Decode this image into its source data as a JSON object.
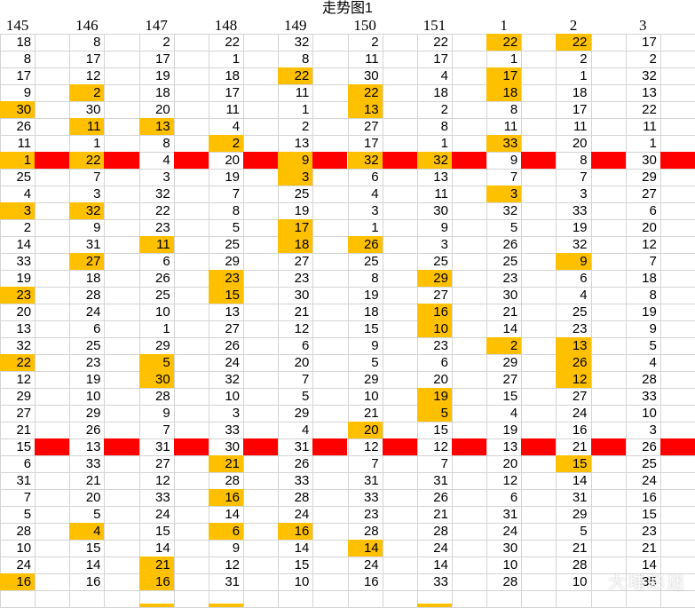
{
  "title": "走势图1",
  "columns": [
    "145",
    "146",
    "147",
    "148",
    "149",
    "150",
    "151",
    "1",
    "2",
    "3"
  ],
  "rows": [
    [
      "18",
      "8",
      "2",
      "22",
      "32",
      "2",
      "22",
      "22",
      "22",
      "17"
    ],
    [
      "8",
      "17",
      "17",
      "1",
      "8",
      "11",
      "17",
      "1",
      "2",
      "2"
    ],
    [
      "17",
      "12",
      "19",
      "18",
      "22",
      "30",
      "4",
      "17",
      "1",
      "32"
    ],
    [
      "9",
      "2",
      "18",
      "17",
      "11",
      "22",
      "18",
      "18",
      "18",
      "13"
    ],
    [
      "30",
      "30",
      "20",
      "11",
      "1",
      "13",
      "2",
      "8",
      "17",
      "22"
    ],
    [
      "26",
      "11",
      "13",
      "4",
      "2",
      "27",
      "8",
      "11",
      "11",
      "11"
    ],
    [
      "11",
      "1",
      "8",
      "2",
      "13",
      "17",
      "1",
      "33",
      "20",
      "1"
    ],
    [
      "1",
      "22",
      "4",
      "20",
      "9",
      "32",
      "32",
      "9",
      "8",
      "30"
    ],
    [
      "25",
      "7",
      "3",
      "19",
      "3",
      "6",
      "13",
      "7",
      "7",
      "29"
    ],
    [
      "4",
      "3",
      "32",
      "7",
      "25",
      "4",
      "11",
      "3",
      "3",
      "27"
    ],
    [
      "3",
      "32",
      "22",
      "8",
      "19",
      "3",
      "30",
      "32",
      "33",
      "6"
    ],
    [
      "2",
      "9",
      "23",
      "5",
      "17",
      "1",
      "9",
      "5",
      "19",
      "20"
    ],
    [
      "14",
      "31",
      "11",
      "25",
      "18",
      "26",
      "3",
      "26",
      "32",
      "12"
    ],
    [
      "33",
      "27",
      "6",
      "29",
      "27",
      "25",
      "25",
      "25",
      "9",
      "7"
    ],
    [
      "19",
      "18",
      "26",
      "23",
      "23",
      "8",
      "29",
      "23",
      "6",
      "18"
    ],
    [
      "23",
      "28",
      "25",
      "15",
      "30",
      "19",
      "27",
      "30",
      "4",
      "8"
    ],
    [
      "20",
      "24",
      "10",
      "13",
      "21",
      "18",
      "16",
      "21",
      "25",
      "19"
    ],
    [
      "13",
      "6",
      "1",
      "27",
      "12",
      "15",
      "10",
      "14",
      "23",
      "9"
    ],
    [
      "32",
      "25",
      "29",
      "26",
      "6",
      "9",
      "23",
      "2",
      "13",
      "5"
    ],
    [
      "22",
      "23",
      "5",
      "24",
      "20",
      "5",
      "6",
      "29",
      "26",
      "4"
    ],
    [
      "12",
      "19",
      "30",
      "32",
      "7",
      "29",
      "20",
      "27",
      "12",
      "28"
    ],
    [
      "29",
      "10",
      "28",
      "10",
      "5",
      "10",
      "19",
      "15",
      "27",
      "33"
    ],
    [
      "27",
      "29",
      "9",
      "3",
      "29",
      "21",
      "5",
      "4",
      "24",
      "10"
    ],
    [
      "21",
      "26",
      "7",
      "33",
      "4",
      "20",
      "15",
      "19",
      "16",
      "3"
    ],
    [
      "15",
      "13",
      "31",
      "30",
      "31",
      "12",
      "12",
      "13",
      "21",
      "26"
    ],
    [
      "6",
      "33",
      "27",
      "21",
      "26",
      "7",
      "7",
      "20",
      "15",
      "25"
    ],
    [
      "31",
      "21",
      "12",
      "28",
      "33",
      "31",
      "31",
      "12",
      "14",
      "24"
    ],
    [
      "7",
      "20",
      "33",
      "16",
      "28",
      "33",
      "26",
      "6",
      "31",
      "16"
    ],
    [
      "5",
      "5",
      "24",
      "14",
      "24",
      "23",
      "21",
      "31",
      "29",
      "15"
    ],
    [
      "28",
      "4",
      "15",
      "6",
      "16",
      "28",
      "28",
      "24",
      "5",
      "23"
    ],
    [
      "10",
      "15",
      "14",
      "9",
      "14",
      "14",
      "24",
      "30",
      "21",
      "21"
    ],
    [
      "24",
      "14",
      "21",
      "12",
      "15",
      "24",
      "14",
      "10",
      "28",
      "14"
    ],
    [
      "16",
      "16",
      "16",
      "31",
      "10",
      "16",
      "33",
      "28",
      "10",
      "35"
    ]
  ],
  "highlighted_cells": [
    [
      0,
      7
    ],
    [
      0,
      8
    ],
    [
      2,
      4
    ],
    [
      2,
      7
    ],
    [
      3,
      1
    ],
    [
      3,
      5
    ],
    [
      3,
      7
    ],
    [
      4,
      0
    ],
    [
      4,
      5
    ],
    [
      5,
      1
    ],
    [
      5,
      2
    ],
    [
      6,
      3
    ],
    [
      6,
      7
    ],
    [
      7,
      0
    ],
    [
      7,
      1
    ],
    [
      7,
      4
    ],
    [
      7,
      5
    ],
    [
      7,
      6
    ],
    [
      8,
      4
    ],
    [
      9,
      7
    ],
    [
      10,
      0
    ],
    [
      10,
      1
    ],
    [
      11,
      4
    ],
    [
      12,
      2
    ],
    [
      12,
      4
    ],
    [
      12,
      5
    ],
    [
      13,
      1
    ],
    [
      13,
      8
    ],
    [
      14,
      3
    ],
    [
      14,
      6
    ],
    [
      15,
      0
    ],
    [
      15,
      3
    ],
    [
      16,
      6
    ],
    [
      17,
      6
    ],
    [
      18,
      7
    ],
    [
      18,
      8
    ],
    [
      19,
      0
    ],
    [
      19,
      2
    ],
    [
      19,
      8
    ],
    [
      20,
      2
    ],
    [
      20,
      8
    ],
    [
      21,
      6
    ],
    [
      22,
      6
    ],
    [
      23,
      5
    ],
    [
      25,
      3
    ],
    [
      25,
      8
    ],
    [
      27,
      3
    ],
    [
      29,
      1
    ],
    [
      29,
      3
    ],
    [
      29,
      4
    ],
    [
      30,
      5
    ],
    [
      31,
      2
    ],
    [
      32,
      0
    ],
    [
      32,
      2
    ]
  ],
  "red_band_rows": [
    7,
    24
  ],
  "watermark": "大埔彩迷",
  "colors": {
    "highlight": "#ffc000",
    "band": "#ff0000",
    "grid": "#d4d4d4",
    "background": "#ffffff"
  }
}
